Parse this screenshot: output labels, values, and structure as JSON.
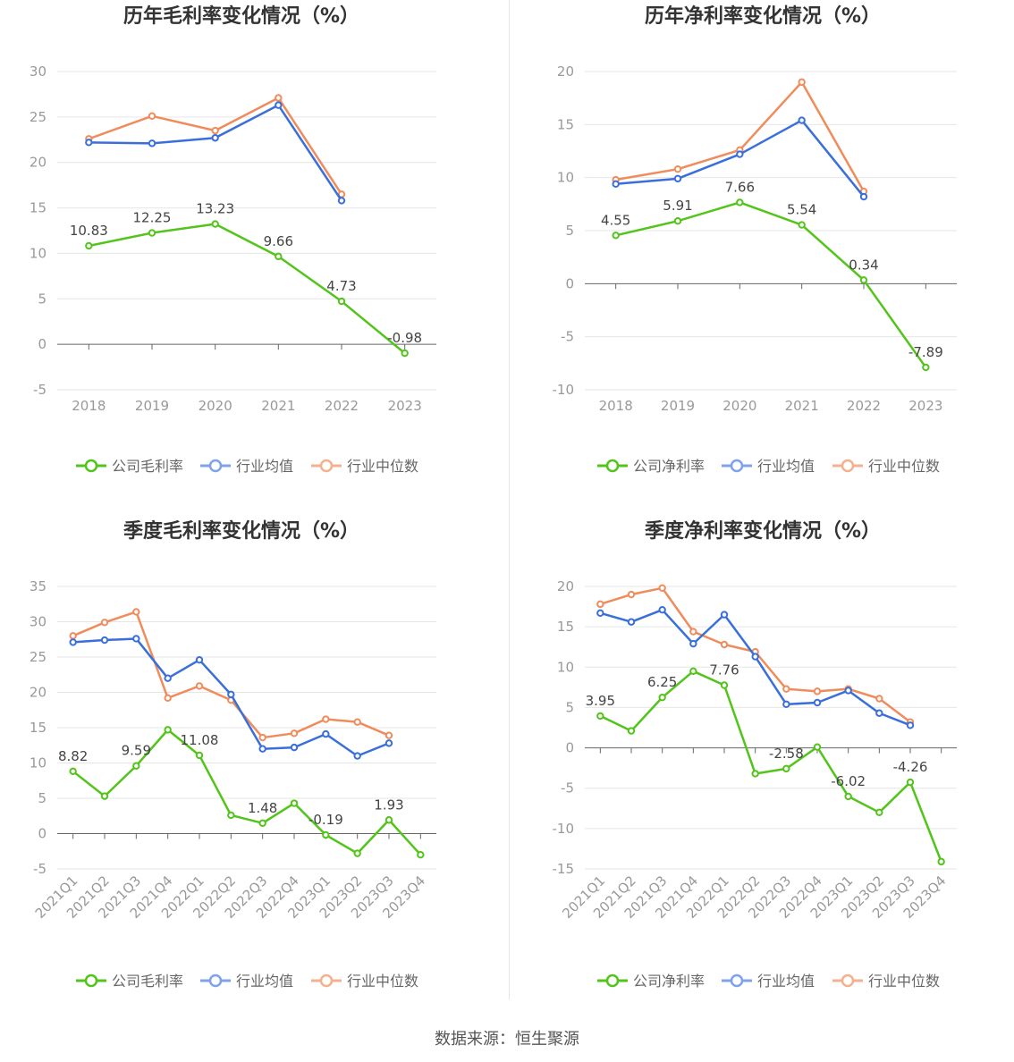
{
  "footer": {
    "source": "数据来源：恒生聚源"
  },
  "colors": {
    "company": "#52c41a",
    "avg": "#3a6fdb",
    "median": "#f08c5c",
    "grid": "#e6e6e6",
    "axis": "#666666",
    "tick": "#999999",
    "title": "#333333"
  },
  "legend_icon": "circle-line-marker",
  "chart_data": [
    {
      "type": "line",
      "title": "历年毛利率变化情况（%）",
      "categories": [
        "2018",
        "2019",
        "2020",
        "2021",
        "2022",
        "2023"
      ],
      "ylim": [
        -5,
        30
      ],
      "yticks": [
        -5,
        0,
        5,
        10,
        15,
        20,
        25,
        30
      ],
      "xlabel_rotated": false,
      "grid": true,
      "legend_position": "bottom",
      "series": [
        {
          "name": "公司毛利率",
          "key": "company",
          "values": [
            10.83,
            12.25,
            13.23,
            9.66,
            4.73,
            -0.98
          ],
          "labels": [
            "10.83",
            "12.25",
            "13.23",
            "9.66",
            "4.73",
            "-0.98"
          ]
        },
        {
          "name": "行业均值",
          "key": "avg",
          "values": [
            22.2,
            22.1,
            22.7,
            26.3,
            15.8,
            null
          ]
        },
        {
          "name": "行业中位数",
          "key": "median",
          "values": [
            22.6,
            25.1,
            23.5,
            27.1,
            16.5,
            null
          ]
        }
      ]
    },
    {
      "type": "line",
      "title": "历年净利率变化情况（%）",
      "categories": [
        "2018",
        "2019",
        "2020",
        "2021",
        "2022",
        "2023"
      ],
      "ylim": [
        -10,
        20
      ],
      "yticks": [
        -10,
        -5,
        0,
        5,
        10,
        15,
        20
      ],
      "xlabel_rotated": false,
      "grid": true,
      "legend_position": "bottom",
      "series": [
        {
          "name": "公司净利率",
          "key": "company",
          "values": [
            4.55,
            5.91,
            7.66,
            5.54,
            0.34,
            -7.89
          ],
          "labels": [
            "4.55",
            "5.91",
            "7.66",
            "5.54",
            "0.34",
            "-7.89"
          ]
        },
        {
          "name": "行业均值",
          "key": "avg",
          "values": [
            9.4,
            9.9,
            12.2,
            15.4,
            8.2,
            null
          ]
        },
        {
          "name": "行业中位数",
          "key": "median",
          "values": [
            9.8,
            10.8,
            12.6,
            19.0,
            8.7,
            null
          ]
        }
      ]
    },
    {
      "type": "line",
      "title": "季度毛利率变化情况（%）",
      "categories": [
        "2021Q1",
        "2021Q2",
        "2021Q3",
        "2021Q4",
        "2022Q1",
        "2022Q2",
        "2022Q3",
        "2022Q4",
        "2023Q1",
        "2023Q2",
        "2023Q3",
        "2023Q4"
      ],
      "ylim": [
        -5,
        35
      ],
      "yticks": [
        -5,
        0,
        5,
        10,
        15,
        20,
        25,
        30,
        35
      ],
      "xlabel_rotated": true,
      "grid": true,
      "legend_position": "bottom",
      "series": [
        {
          "name": "公司毛利率",
          "key": "company",
          "values": [
            8.82,
            5.3,
            9.59,
            14.7,
            11.08,
            2.6,
            1.48,
            4.3,
            -0.19,
            -2.8,
            1.93,
            -3.0
          ],
          "labels": [
            "8.82",
            "",
            "9.59",
            "",
            "11.08",
            "",
            "1.48",
            "",
            "-0.19",
            "",
            "1.93",
            ""
          ]
        },
        {
          "name": "行业均值",
          "key": "avg",
          "values": [
            27.1,
            27.4,
            27.6,
            22.0,
            24.6,
            19.7,
            12.0,
            12.2,
            14.1,
            11.0,
            12.8,
            null
          ]
        },
        {
          "name": "行业中位数",
          "key": "median",
          "values": [
            28.0,
            29.9,
            31.4,
            19.2,
            20.9,
            18.9,
            13.6,
            14.2,
            16.2,
            15.8,
            13.9,
            null
          ]
        }
      ]
    },
    {
      "type": "line",
      "title": "季度净利率变化情况（%）",
      "categories": [
        "2021Q1",
        "2021Q2",
        "2021Q3",
        "2021Q4",
        "2022Q1",
        "2022Q2",
        "2022Q3",
        "2022Q4",
        "2023Q1",
        "2023Q2",
        "2023Q3",
        "2023Q4"
      ],
      "ylim": [
        -15,
        20
      ],
      "yticks": [
        -15,
        -10,
        -5,
        0,
        5,
        10,
        15,
        20
      ],
      "xlabel_rotated": true,
      "grid": true,
      "legend_position": "bottom",
      "series": [
        {
          "name": "公司净利率",
          "key": "company",
          "values": [
            3.95,
            2.1,
            6.25,
            9.5,
            7.76,
            -3.2,
            -2.58,
            0.1,
            -6.02,
            -8.0,
            -4.26,
            -14.1
          ],
          "labels": [
            "3.95",
            "",
            "6.25",
            "",
            "7.76",
            "",
            "-2.58",
            "",
            "-6.02",
            "",
            "-4.26",
            ""
          ]
        },
        {
          "name": "行业均值",
          "key": "avg",
          "values": [
            16.7,
            15.6,
            17.1,
            12.9,
            16.5,
            11.3,
            5.4,
            5.6,
            7.1,
            4.3,
            2.8,
            null
          ]
        },
        {
          "name": "行业中位数",
          "key": "median",
          "values": [
            17.8,
            19.0,
            19.8,
            14.4,
            12.8,
            11.9,
            7.3,
            7.0,
            7.3,
            6.1,
            3.2,
            null
          ]
        }
      ]
    }
  ]
}
